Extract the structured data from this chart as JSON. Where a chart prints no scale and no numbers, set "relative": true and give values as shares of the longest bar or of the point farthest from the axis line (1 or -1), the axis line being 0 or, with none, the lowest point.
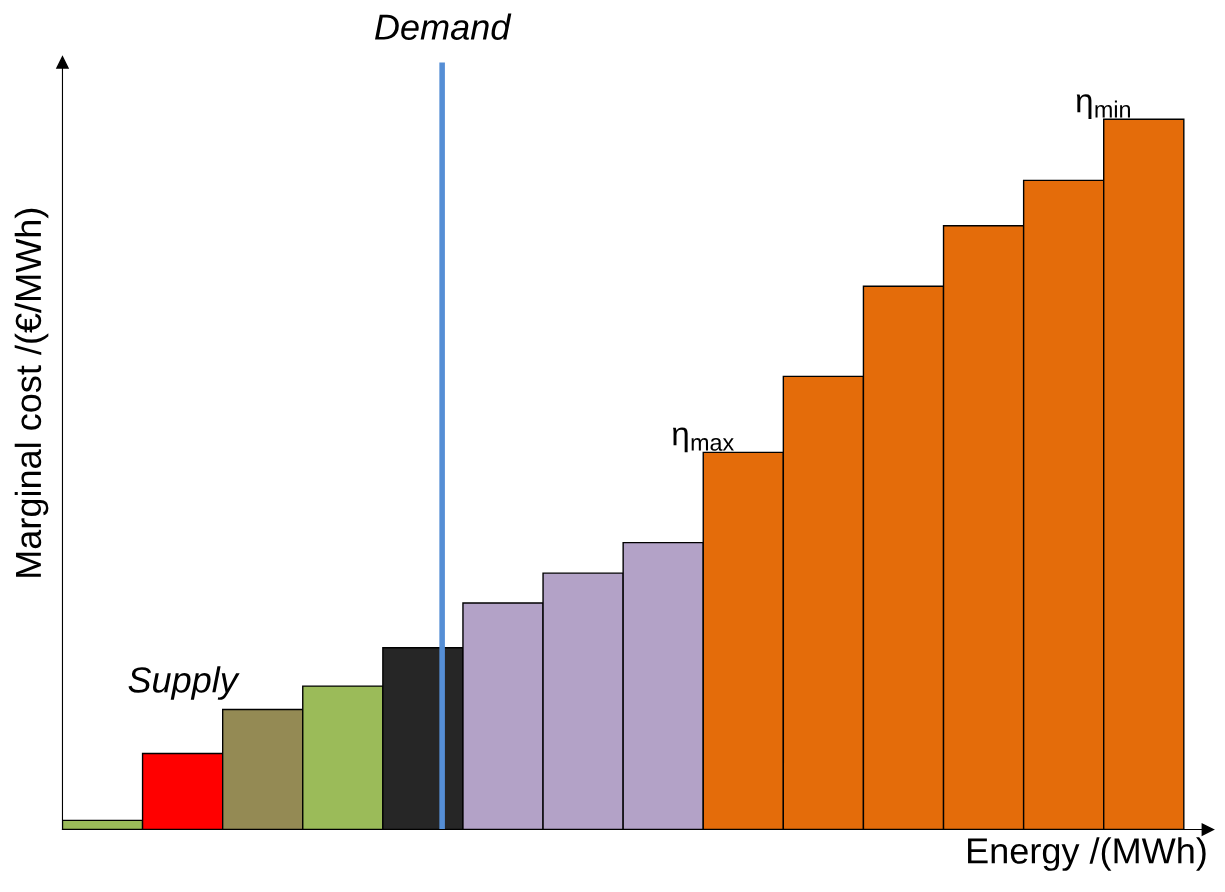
{
  "chart_data": {
    "type": "bar",
    "relative": true,
    "xlabel": "Energy /(MWh)",
    "ylabel": "Marginal cost /(€/MWh)",
    "categories": [
      null,
      null,
      null,
      null,
      null,
      null,
      null,
      null,
      null,
      null,
      null,
      null,
      null,
      null
    ],
    "values": [
      0.013,
      0.107,
      0.169,
      0.202,
      0.256,
      0.319,
      0.361,
      0.404,
      0.531,
      0.638,
      0.765,
      0.85,
      0.914,
      1
    ],
    "colors": [
      "#9bbb59",
      "#ff0000",
      "#948a54",
      "#9bbb59",
      "#262626",
      "#b3a2c7",
      "#b3a2c7",
      "#b3a2c7",
      "#e46c0a",
      "#e46c0a",
      "#e46c0a",
      "#e46c0a",
      "#e46c0a",
      "#e46c0a"
    ],
    "annotations": [
      "Demand",
      "Supply",
      {
        "text": "η$_{max}$",
        "y": 0.531
      },
      {
        "text": "η$_{min}$",
        "y": 1
      }
    ],
    "grid": false
  }
}
